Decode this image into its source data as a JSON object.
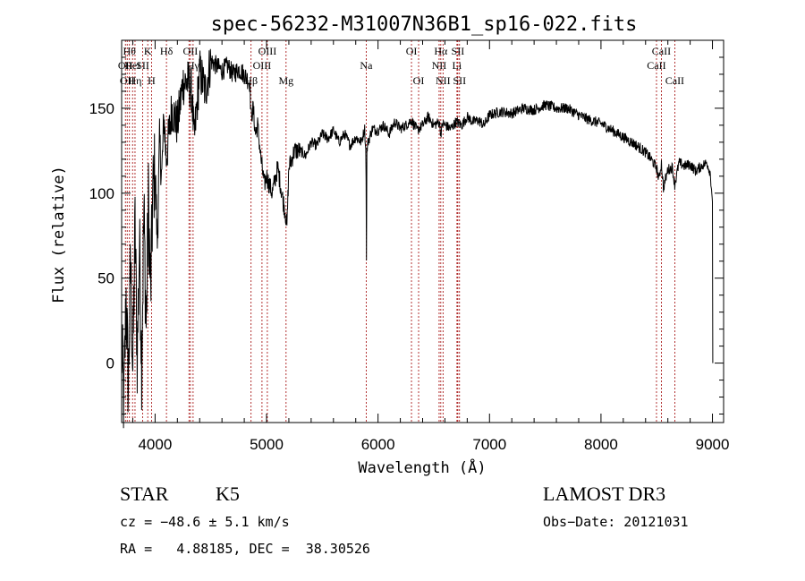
{
  "chart_data": {
    "type": "line",
    "title": "spec-56232-M31007N36B1_sp16-022.fits",
    "xlabel": "Wavelength (Å)",
    "ylabel": "Flux (relative)",
    "xlim": [
      3700,
      9100
    ],
    "ylim": [
      -35,
      190
    ],
    "xticks": [
      4000,
      5000,
      6000,
      7000,
      8000,
      9000
    ],
    "yticks": [
      0,
      50,
      100,
      150
    ],
    "grid": false,
    "line_color": "#000000",
    "marker_color": "#a00000",
    "series": [
      {
        "x": [
          3700,
          3720,
          3740,
          3760,
          3780,
          3800,
          3820,
          3840,
          3860,
          3880,
          3900,
          3920,
          3940,
          3960,
          3980,
          4000,
          4020,
          4040,
          4060,
          4080,
          4100,
          4150,
          4200,
          4250,
          4300,
          4330,
          4350,
          4400,
          4450,
          4500,
          4550,
          4600,
          4650,
          4700,
          4750,
          4800,
          4850,
          4861,
          4880,
          4900,
          4920,
          4950,
          4980,
          5000,
          5050,
          5100,
          5150,
          5170,
          5183,
          5200,
          5250,
          5300,
          5350,
          5400,
          5450,
          5500,
          5550,
          5600,
          5650,
          5700,
          5750,
          5800,
          5850,
          5880,
          5890,
          5893,
          5896,
          5900,
          5910,
          5950,
          6000,
          6050,
          6100,
          6150,
          6200,
          6250,
          6300,
          6350,
          6400,
          6450,
          6500,
          6550,
          6563,
          6580,
          6600,
          6650,
          6700,
          6750,
          6800,
          6850,
          6900,
          6950,
          7000,
          7100,
          7200,
          7300,
          7400,
          7500,
          7600,
          7700,
          7800,
          7900,
          8000,
          8100,
          8200,
          8300,
          8400,
          8450,
          8498,
          8520,
          8542,
          8560,
          8600,
          8640,
          8662,
          8700,
          8750,
          8800,
          8850,
          8900,
          8950,
          8980,
          9000,
          9003
        ],
        "y": [
          10,
          -25,
          40,
          -15,
          60,
          -5,
          80,
          5,
          70,
          0,
          90,
          20,
          95,
          40,
          100,
          115,
          70,
          130,
          110,
          145,
          120,
          150,
          140,
          165,
          165,
          160,
          130,
          172,
          160,
          178,
          175,
          172,
          175,
          170,
          173,
          170,
          165,
          145,
          150,
          135,
          140,
          120,
          105,
          110,
          100,
          115,
          95,
          88,
          80,
          115,
          125,
          125,
          122,
          130,
          128,
          135,
          132,
          137,
          130,
          135,
          128,
          133,
          130,
          138,
          125,
          110,
          60,
          125,
          130,
          138,
          137,
          140,
          135,
          142,
          138,
          140,
          143,
          137,
          140,
          145,
          140,
          142,
          135,
          141,
          140,
          138,
          142,
          140,
          145,
          142,
          143,
          140,
          146,
          148,
          147,
          150,
          149,
          152,
          150,
          150,
          146,
          143,
          141,
          137,
          133,
          129,
          124,
          120,
          115,
          108,
          118,
          103,
          114,
          115,
          105,
          118,
          116,
          117,
          113,
          116,
          118,
          112,
          95,
          0
        ]
      }
    ],
    "lines": [
      {
        "wl": 3734,
        "label": "OII",
        "row": 1
      },
      {
        "wl": 3750,
        "label": "OII",
        "row": 2
      },
      {
        "wl": 3770,
        "label": "Hθ",
        "row": 0
      },
      {
        "wl": 3798,
        "label": "HeI",
        "row": 1
      },
      {
        "wl": 3820,
        "label": "Hη",
        "row": 2
      },
      {
        "wl": 3889,
        "label": "SII",
        "row": 1
      },
      {
        "wl": 3934,
        "label": "K",
        "row": 0
      },
      {
        "wl": 3968,
        "label": "H",
        "row": 2
      },
      {
        "wl": 4102,
        "label": "Hδ",
        "row": 0
      },
      {
        "wl": 4304,
        "label": "G",
        "row": 2
      },
      {
        "wl": 4317,
        "label": "OII",
        "row": 0
      },
      {
        "wl": 4341,
        "label": "Hγ",
        "row": 1
      },
      {
        "wl": 4861,
        "label": "Hβ",
        "row": 2
      },
      {
        "wl": 4959,
        "label": "OIII",
        "row": 1
      },
      {
        "wl": 5007,
        "label": "OIII",
        "row": 0
      },
      {
        "wl": 5175,
        "label": "Mg",
        "row": 2
      },
      {
        "wl": 5894,
        "label": "Na",
        "row": 1
      },
      {
        "wl": 6300,
        "label": "OI",
        "row": 0
      },
      {
        "wl": 6364,
        "label": "OI",
        "row": 2
      },
      {
        "wl": 6548,
        "label": "NII",
        "row": 1
      },
      {
        "wl": 6563,
        "label": "Hα",
        "row": 0
      },
      {
        "wl": 6583,
        "label": "NII",
        "row": 2
      },
      {
        "wl": 6708,
        "label": "Li",
        "row": 1
      },
      {
        "wl": 6716,
        "label": "SII",
        "row": 0
      },
      {
        "wl": 6731,
        "label": "SII",
        "row": 2
      },
      {
        "wl": 8498,
        "label": "CaII",
        "row": 1
      },
      {
        "wl": 8542,
        "label": "CaII",
        "row": 0
      },
      {
        "wl": 8662,
        "label": "CaII",
        "row": 2
      }
    ]
  },
  "info": {
    "class": "STAR",
    "subclass": "K5",
    "survey": "LAMOST DR3",
    "cz": "cz = −48.6 ± 5.1 km/s",
    "obs_date": "Obs−Date: 20121031",
    "radec": "RA =   4.88185, DEC =  38.30526"
  }
}
